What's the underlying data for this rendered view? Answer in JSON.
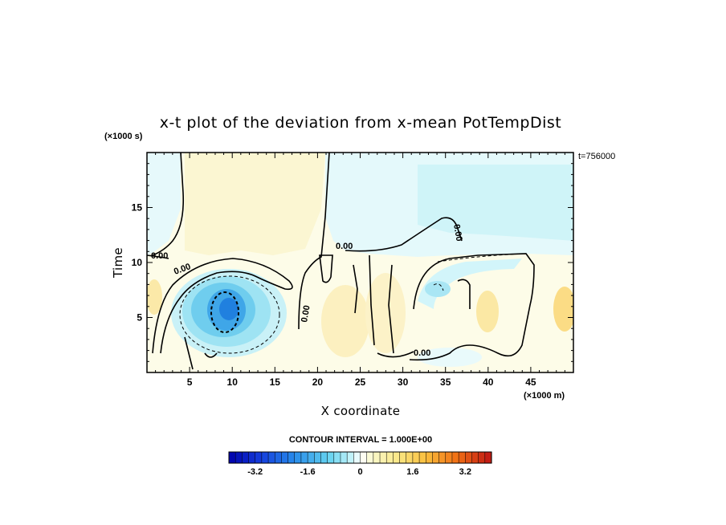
{
  "chart_data": {
    "type": "heatmap",
    "title": "x-t plot of the deviation from x-mean PotTempDist",
    "xlabel": "X coordinate",
    "ylabel": "Time",
    "x_unit": "(×1000 m)",
    "y_unit": "(×1000 s)",
    "time_stamp": "t=756000",
    "xlim": [
      0,
      50
    ],
    "ylim": [
      0,
      20
    ],
    "x_ticks": [
      5,
      10,
      15,
      20,
      25,
      30,
      35,
      40,
      45
    ],
    "y_ticks": [
      5,
      10,
      15
    ],
    "contour_interval_text": "CONTOUR INTERVAL = 1.000E+00",
    "contour_labels": [
      "0.00",
      "0.00",
      "0.00",
      "0.00",
      "0.00",
      "0.00"
    ],
    "colorbar": {
      "range": [
        -4,
        4
      ],
      "n_levels": 40,
      "tick_labels": [
        "-3.2",
        "-1.6",
        "0",
        "1.6",
        "3.2"
      ],
      "tick_values": [
        -3.2,
        -1.6,
        0,
        1.6,
        3.2
      ]
    },
    "features": [
      {
        "x": 9,
        "t": 5.8,
        "value": -3.0,
        "note": "cold anomaly core"
      },
      {
        "x": 35,
        "t": 7,
        "value": -1.2
      },
      {
        "x": 30,
        "t": 16,
        "value": -0.4
      },
      {
        "x": 40,
        "t": 6,
        "value": 0.8
      },
      {
        "x": 49,
        "t": 6,
        "value": 1.0
      },
      {
        "x": 24,
        "t": 4,
        "value": 0.5
      },
      {
        "x": 18,
        "t": 16,
        "value": 0.3
      }
    ]
  }
}
